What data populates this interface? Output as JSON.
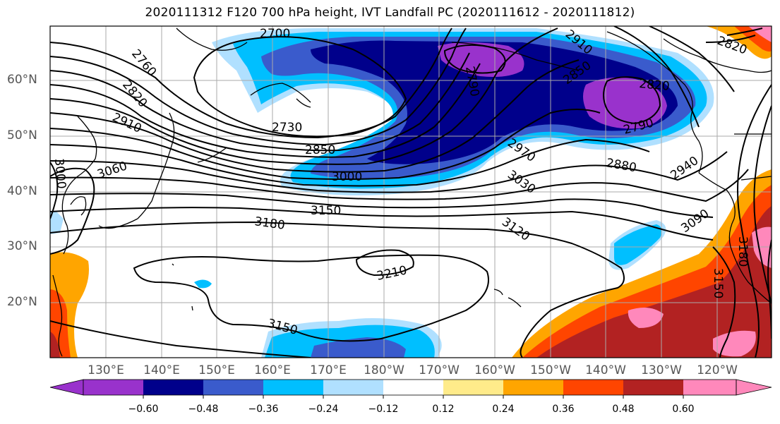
{
  "title": "2020111312 F120 700 hPa height, IVT Landfall PC (2020111612 - 2020111812)",
  "latitude_labels": [
    "60°N",
    "50°N",
    "40°N",
    "30°N",
    "20°N"
  ],
  "longitude_labels": [
    "130°E",
    "140°E",
    "150°E",
    "160°E",
    "170°E",
    "180°W",
    "170°W",
    "160°W",
    "150°W",
    "140°W",
    "130°W",
    "120°W"
  ],
  "contour_labels": [
    "2700",
    "2760",
    "2820",
    "2910",
    "2730",
    "2850",
    "3000",
    "3060",
    "3000",
    "3150",
    "3180",
    "3210",
    "3150",
    "2970",
    "3030",
    "3120",
    "2880",
    "2940",
    "3090",
    "2910",
    "2820",
    "2790",
    "2850",
    "2820",
    "2790",
    "3150",
    "3180"
  ],
  "colorbar": {
    "tick_labels": [
      "−0.60",
      "−0.48",
      "−0.36",
      "−0.24",
      "−0.12",
      "0.12",
      "0.24",
      "0.36",
      "0.48",
      "0.60"
    ],
    "colors": [
      "#9932cc",
      "#00008b",
      "#3a5bcc",
      "#00bfff",
      "#b0e0ff",
      "#ffffff",
      "#ffeb8a",
      "#ffa500",
      "#ff4500",
      "#b22222",
      "#ff88bb"
    ]
  }
}
